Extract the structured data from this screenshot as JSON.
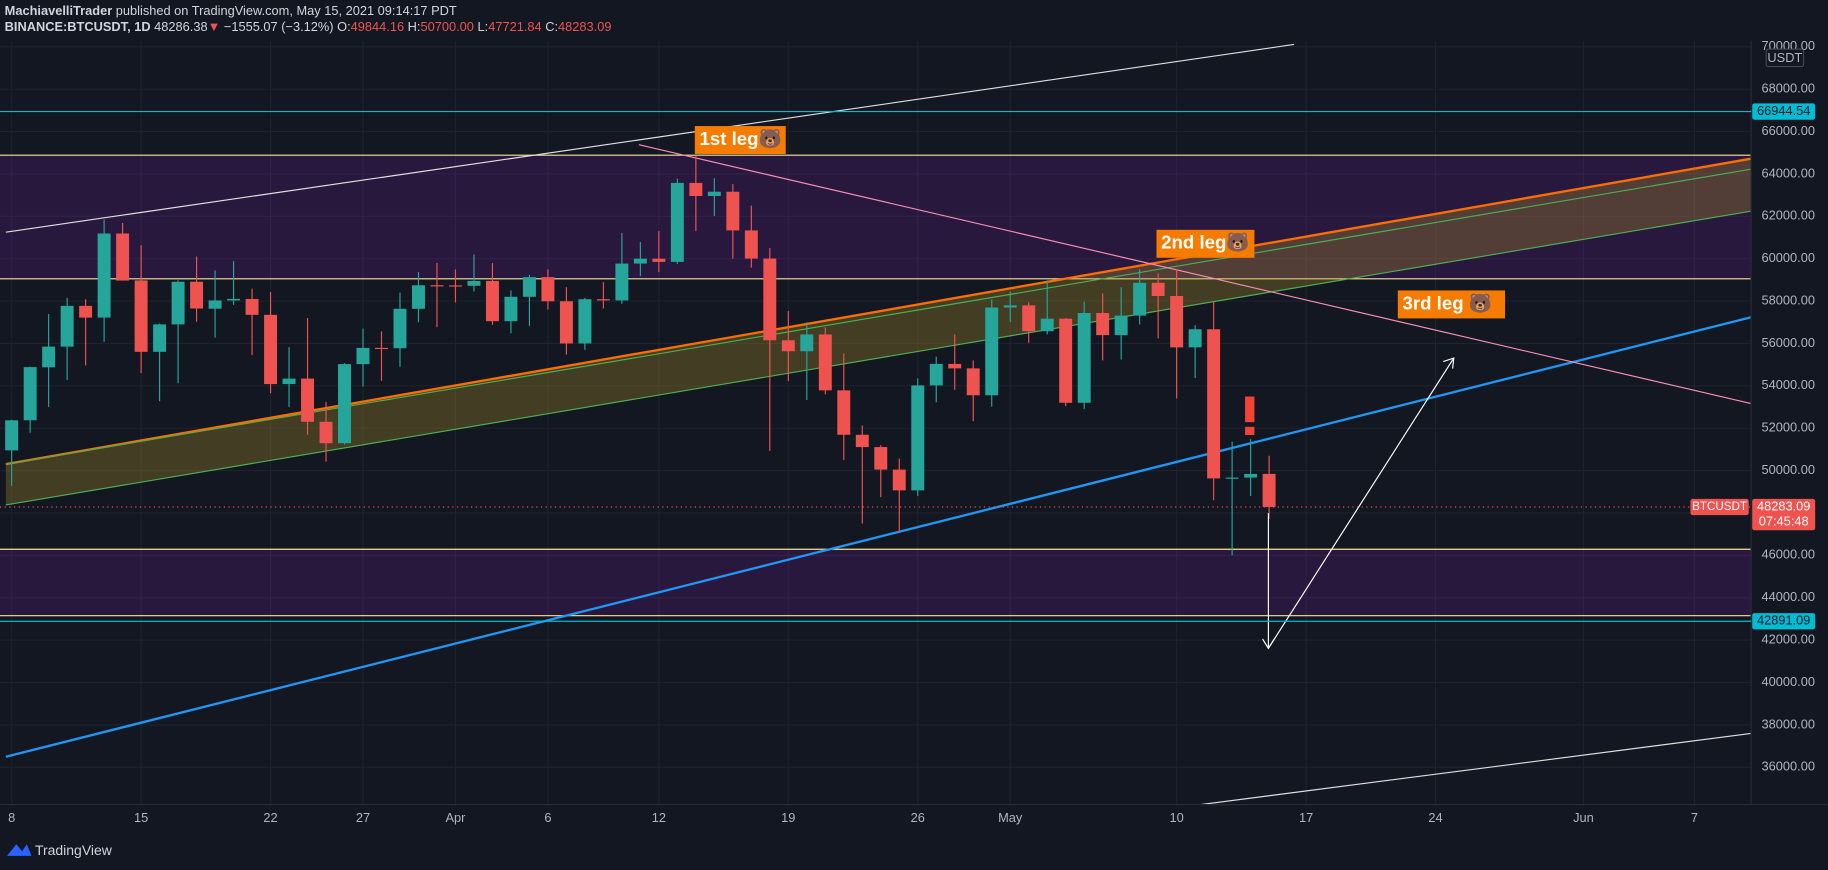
{
  "header": {
    "author": "MachiavelliTrader",
    "published": "published on TradingView.com, May 15, 2021 09:14:17 PDT",
    "symbol": "BINANCE:BTCUSDT, 1D",
    "last": "48286.38",
    "arrow": "▼",
    "change": "−1555.07 (−3.12%)",
    "o_label": "O:",
    "o": "49844.16",
    "h_label": "H:",
    "h": "50700.00",
    "l_label": "L:",
    "l": "47721.84",
    "c_label": "C:",
    "c": "48283.09"
  },
  "chart_data": {
    "type": "candlestick",
    "x": [
      "2021-03-08",
      "2021-03-09",
      "2021-03-10",
      "2021-03-11",
      "2021-03-12",
      "2021-03-13",
      "2021-03-14",
      "2021-03-15",
      "2021-03-16",
      "2021-03-17",
      "2021-03-18",
      "2021-03-19",
      "2021-03-20",
      "2021-03-21",
      "2021-03-22",
      "2021-03-23",
      "2021-03-24",
      "2021-03-25",
      "2021-03-26",
      "2021-03-27",
      "2021-03-28",
      "2021-03-29",
      "2021-03-30",
      "2021-03-31",
      "2021-04-01",
      "2021-04-02",
      "2021-04-03",
      "2021-04-04",
      "2021-04-05",
      "2021-04-06",
      "2021-04-07",
      "2021-04-08",
      "2021-04-09",
      "2021-04-10",
      "2021-04-11",
      "2021-04-12",
      "2021-04-13",
      "2021-04-14",
      "2021-04-15",
      "2021-04-16",
      "2021-04-17",
      "2021-04-18",
      "2021-04-19",
      "2021-04-20",
      "2021-04-21",
      "2021-04-22",
      "2021-04-23",
      "2021-04-24",
      "2021-04-25",
      "2021-04-26",
      "2021-04-27",
      "2021-04-28",
      "2021-04-29",
      "2021-04-30",
      "2021-05-01",
      "2021-05-02",
      "2021-05-03",
      "2021-05-04",
      "2021-05-05",
      "2021-05-06",
      "2021-05-07",
      "2021-05-08",
      "2021-05-09",
      "2021-05-10",
      "2021-05-11",
      "2021-05-12",
      "2021-05-13",
      "2021-05-14",
      "2021-05-15"
    ],
    "open": [
      50955,
      52376,
      54874,
      55851,
      57773,
      57222,
      61188,
      58976,
      55606,
      56900,
      58912,
      57641,
      58030,
      58100,
      57351,
      54084,
      54342,
      52303,
      51293,
      55025,
      55791,
      55777,
      57635,
      58746,
      58740,
      58720,
      58950,
      57052,
      58202,
      59129,
      57991,
      56000,
      58088,
      58030,
      59770,
      60000,
      59850,
      63575,
      62959,
      63159,
      61334,
      60006,
      56150,
      55633,
      56425,
      53787,
      51690,
      51110,
      50047,
      49067,
      54021,
      55034,
      54824,
      53555,
      57697,
      57798,
      56578,
      57169,
      53200,
      57436,
      56393,
      57314,
      58862,
      58240,
      55816,
      56670,
      49631,
      49670,
      49844.16
    ],
    "high": [
      52400,
      54900,
      57387,
      58150,
      58081,
      61844,
      61683,
      60633,
      56939,
      58981,
      60100,
      59450,
      59880,
      58589,
      58430,
      55830,
      57200,
      53238,
      55073,
      56700,
      56568,
      58405,
      59368,
      59800,
      59490,
      60200,
      59791,
      58500,
      59236,
      59496,
      58650,
      58153,
      58894,
      61216,
      60790,
      61300,
      63777,
      64854,
      63800,
      63520,
      62506,
      60499,
      57526,
      57000,
      56757,
      55521,
      52131,
      51200,
      50567,
      54356,
      55379,
      56428,
      55200,
      58075,
      58458,
      57939,
      58981,
      57200,
      57963,
      58360,
      58650,
      59500,
      59300,
      59500,
      56862,
      58000,
      51367,
      51483,
      50700
    ],
    "low": [
      49274,
      51789,
      53005,
      54272,
      54962,
      56078,
      58963,
      54600,
      53271,
      54123,
      57023,
      56270,
      57820,
      55450,
      53650,
      53000,
      51700,
      50427,
      51226,
      53961,
      54242,
      54900,
      57000,
      56769,
      57935,
      58449,
      56880,
      56478,
      56817,
      57600,
      55473,
      55700,
      57654,
      57870,
      59177,
      59360,
      59755,
      61301,
      62020,
      60000,
      59580,
      50931,
      54221,
      53329,
      53600,
      50500,
      47500,
      48750,
      47044,
      48800,
      53222,
      53813,
      52330,
      53013,
      57006,
      56035,
      56425,
      53046,
      52900,
      55200,
      55241,
      56900,
      56235,
      53400,
      54370,
      48600,
      46000,
      48800,
      47721.84
    ],
    "close": [
      52375,
      54884,
      55851,
      57773,
      57221,
      61188,
      58968,
      55605,
      56900,
      58912,
      57648,
      58030,
      58102,
      57351,
      54083,
      54340,
      52303,
      51293,
      55025,
      55791,
      55777,
      57635,
      58746,
      58740,
      58720,
      58950,
      57051,
      58202,
      59129,
      57991,
      56000,
      58088,
      58030,
      59770,
      60000,
      59850,
      63575,
      62959,
      63159,
      61334,
      60006,
      56150,
      55633,
      56425,
      53787,
      51690,
      51110,
      50047,
      49067,
      54021,
      55034,
      54824,
      53555,
      57697,
      57798,
      56578,
      57169,
      53200,
      57436,
      56393,
      57314,
      58862,
      58240,
      55816,
      56670,
      49631,
      49670,
      49841,
      48283.09
    ],
    "up_color": "#26a69a",
    "down_color": "#ef5350",
    "xlim": [
      "2021-03-07",
      "2021-06-10"
    ],
    "xticks": [
      {
        "value": "2021-03-08",
        "label": "8"
      },
      {
        "value": "2021-03-15",
        "label": "15"
      },
      {
        "value": "2021-03-22",
        "label": "22"
      },
      {
        "value": "2021-03-27",
        "label": "27"
      },
      {
        "value": "2021-04-01",
        "label": "Apr"
      },
      {
        "value": "2021-04-06",
        "label": "6"
      },
      {
        "value": "2021-04-12",
        "label": "12"
      },
      {
        "value": "2021-04-19",
        "label": "19"
      },
      {
        "value": "2021-04-26",
        "label": "26"
      },
      {
        "value": "2021-05-01",
        "label": "May"
      },
      {
        "value": "2021-05-10",
        "label": "10"
      },
      {
        "value": "2021-05-17",
        "label": "17"
      },
      {
        "value": "2021-05-24",
        "label": "24"
      },
      {
        "value": "2021-06-01",
        "label": "Jun"
      },
      {
        "value": "2021-06-07",
        "label": "7"
      }
    ],
    "ylim": [
      34240,
      70275
    ],
    "yticks": [
      {
        "value": 36000,
        "label": "36000.00"
      },
      {
        "value": 38000,
        "label": "38000.00"
      },
      {
        "value": 40000,
        "label": "40000.00"
      },
      {
        "value": 42000,
        "label": "42000.00"
      },
      {
        "value": 44000,
        "label": "44000.00"
      },
      {
        "value": 46000,
        "label": "46000.00"
      },
      {
        "value": 48000,
        "label": "48000.00"
      },
      {
        "value": 50000,
        "label": "50000.00"
      },
      {
        "value": 52000,
        "label": "52000.00"
      },
      {
        "value": 54000,
        "label": "54000.00"
      },
      {
        "value": 56000,
        "label": "56000.00"
      },
      {
        "value": 58000,
        "label": "58000.00"
      },
      {
        "value": 60000,
        "label": "60000.00"
      },
      {
        "value": 62000,
        "label": "62000.00"
      },
      {
        "value": 64000,
        "label": "64000.00"
      },
      {
        "value": 66000,
        "label": "66000.00"
      },
      {
        "value": 68000,
        "label": "68000.00"
      },
      {
        "value": 70000,
        "label": "70000.00"
      }
    ],
    "grid": true,
    "currency": "USDT",
    "levels": [
      {
        "value": 66944.54,
        "color": "#00bcd4"
      },
      {
        "value": 42891.09,
        "color": "#00bcd4"
      }
    ],
    "symbol_label": "BTCUSDT",
    "last_price": 48283.09,
    "countdown": "07:45:48",
    "annotations": [
      "1st leg🐻",
      "2nd leg🐻",
      "3rd leg 🐻"
    ]
  },
  "footer": {
    "brand": "TradingView"
  }
}
